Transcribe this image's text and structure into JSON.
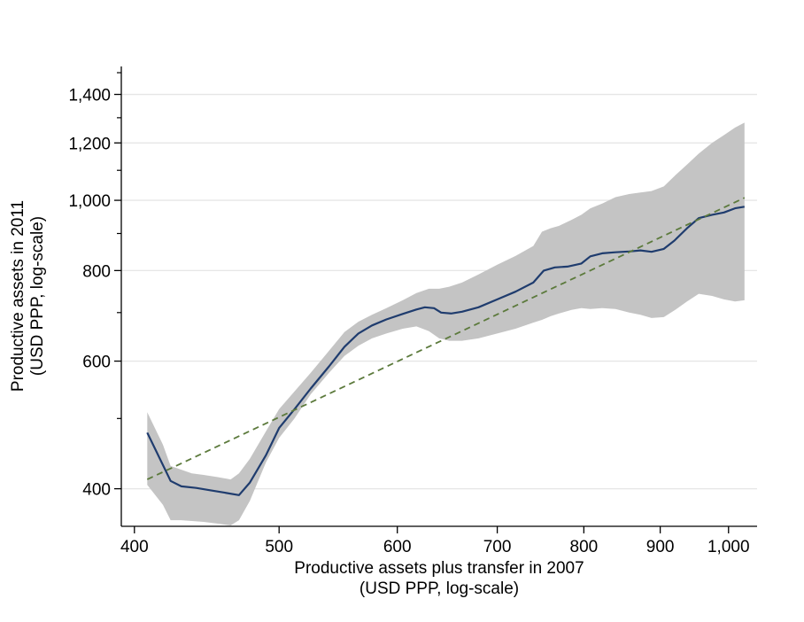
{
  "chart_data": {
    "type": "line",
    "title": "",
    "xlabel": [
      "Productive assets plus transfer in 2007",
      "(USD PPP, log-scale)"
    ],
    "ylabel": [
      "Productive assets in 2011",
      "(USD PPP, log-scale)"
    ],
    "x_scale": "log",
    "y_scale": "log",
    "xlim": [
      392,
      1045
    ],
    "ylim": [
      355,
      1530
    ],
    "x_ticks": [
      {
        "value": 400,
        "label": "400"
      },
      {
        "value": 500,
        "label": "500"
      },
      {
        "value": 600,
        "label": "600"
      },
      {
        "value": 700,
        "label": "700"
      },
      {
        "value": 800,
        "label": "800"
      },
      {
        "value": 900,
        "label": "900"
      },
      {
        "value": 1000,
        "label": "1,000"
      }
    ],
    "y_ticks": [
      {
        "value": 400,
        "label": "400"
      },
      {
        "value": 600,
        "label": "600"
      },
      {
        "value": 800,
        "label": "800"
      },
      {
        "value": 1000,
        "label": "1,000"
      },
      {
        "value": 1200,
        "label": "1,200"
      },
      {
        "value": 1400,
        "label": "1,400"
      }
    ],
    "y_minor_ticks": [
      500,
      700,
      900,
      1100,
      1300,
      1500
    ],
    "grid": "horizontal",
    "series": [
      {
        "kind": "band",
        "x": [
          408,
          418,
          423,
          430,
          437,
          445,
          455,
          464,
          470,
          478,
          490,
          500,
          512,
          525,
          540,
          553,
          565,
          577,
          590,
          605,
          618,
          630,
          640,
          650,
          663,
          680,
          700,
          720,
          740,
          750,
          760,
          770,
          785,
          797,
          808,
          823,
          840,
          858,
          873,
          888,
          905,
          920,
          938,
          955,
          975,
          993,
          1010,
          1025
        ],
        "upper": [
          510,
          460,
          430,
          425,
          420,
          418,
          415,
          412,
          420,
          440,
          480,
          515,
          545,
          578,
          620,
          658,
          680,
          695,
          710,
          728,
          745,
          755,
          755,
          760,
          770,
          790,
          815,
          838,
          865,
          905,
          915,
          922,
          940,
          955,
          975,
          990,
          1010,
          1020,
          1025,
          1030,
          1045,
          1080,
          1120,
          1160,
          1200,
          1230,
          1260,
          1280
        ],
        "lower": [
          405,
          380,
          362,
          362,
          361,
          360,
          358,
          356,
          362,
          385,
          435,
          470,
          500,
          540,
          578,
          610,
          630,
          645,
          655,
          665,
          670,
          660,
          645,
          640,
          640,
          645,
          655,
          665,
          678,
          684,
          692,
          698,
          706,
          710,
          708,
          710,
          708,
          700,
          695,
          688,
          690,
          705,
          725,
          743,
          738,
          730,
          725,
          728
        ],
        "color": "#c4c4c4"
      },
      {
        "kind": "line",
        "style": "solid",
        "x": [
          408,
          423,
          430,
          440,
          450,
          460,
          470,
          478,
          490,
          500,
          512,
          525,
          540,
          553,
          565,
          577,
          590,
          605,
          618,
          626,
          635,
          642,
          652,
          663,
          680,
          700,
          720,
          740,
          752,
          765,
          780,
          797,
          808,
          823,
          840,
          858,
          873,
          888,
          905,
          920,
          938,
          955,
          975,
          993,
          1010,
          1025
        ],
        "y": [
          478,
          410,
          403,
          401,
          398,
          395,
          392,
          408,
          445,
          485,
          515,
          550,
          590,
          628,
          655,
          672,
          685,
          697,
          707,
          712,
          710,
          700,
          698,
          702,
          712,
          730,
          748,
          770,
          800,
          808,
          810,
          818,
          837,
          845,
          848,
          850,
          853,
          849,
          857,
          880,
          915,
          945,
          955,
          962,
          975,
          980
        ],
        "color": "#1f3c6e"
      },
      {
        "kind": "line",
        "style": "dashed",
        "x": [
          408,
          1025
        ],
        "y": [
          412,
          1008
        ],
        "color": "#5c7a3c"
      }
    ]
  }
}
